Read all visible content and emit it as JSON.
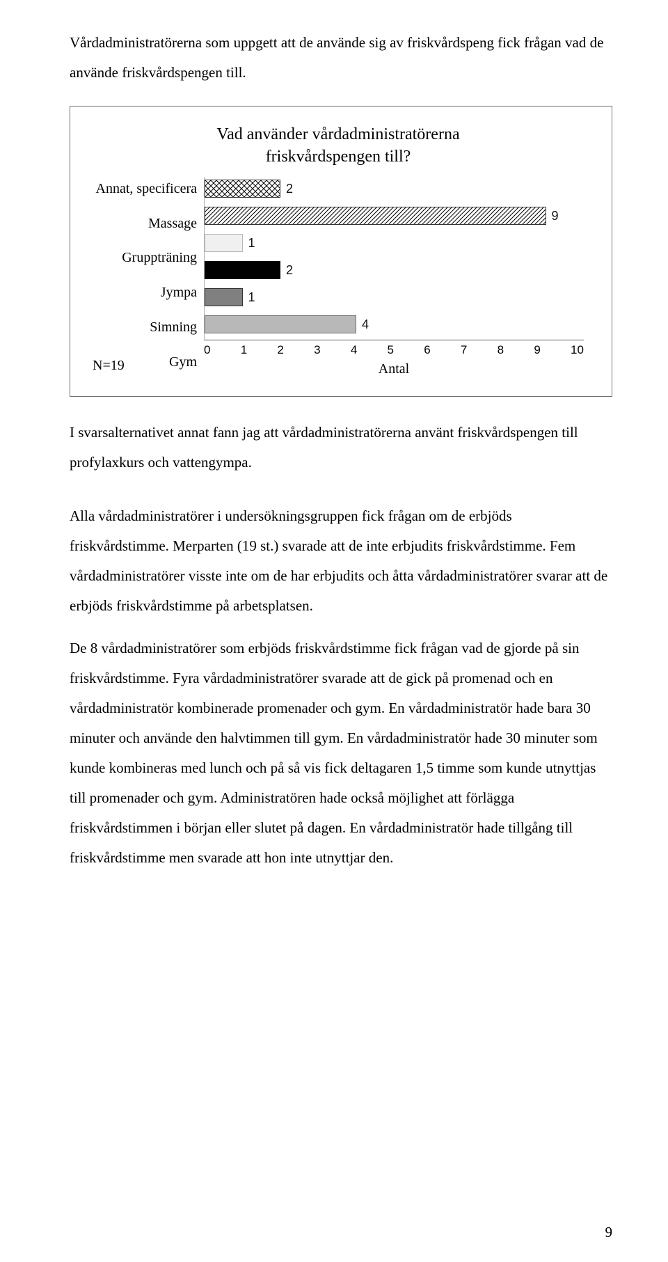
{
  "intro_paragraph": "Vårdadministratörerna som uppgett att de använde sig av friskvårdspeng fick frågan vad de använde friskvårdspengen till.",
  "chart": {
    "type": "bar-horizontal",
    "title_line1": "Vad använder vårdadministratörerna",
    "title_line2": "friskvårdspengen till?",
    "categories": [
      "Annat, specificera",
      "Massage",
      "Gruppträning",
      "Jympa",
      "Simning",
      "Gym"
    ],
    "values": [
      2,
      9,
      1,
      2,
      1,
      4
    ],
    "patterns": [
      "pat-crosshatch",
      "pat-diag",
      "pat-light",
      "pat-solid",
      "pat-horiz",
      "pat-grey"
    ],
    "border_colors": [
      "#333333",
      "#333333",
      "#b8b8b8",
      "#000000",
      "#333333",
      "#6e6e6e"
    ],
    "xmax": 10,
    "xticks": [
      "0",
      "1",
      "2",
      "3",
      "4",
      "5",
      "6",
      "7",
      "8",
      "9",
      "10"
    ],
    "xaxis_label": "Antal",
    "n_note": "N=19",
    "title_fontsize": 24,
    "ylabel_fontsize": 20,
    "bar_label_fontsize": 18,
    "xtick_fontsize": 17,
    "plot_border_color": "#6f6f6f",
    "background_color": "#ffffff",
    "axis_color": "#5c5c5c"
  },
  "para2": "I svarsalternativet annat fann jag att vårdadministratörerna använt friskvårdspengen till profylaxkurs och vattengympa.",
  "para3": "Alla vårdadministratörer i undersökningsgruppen fick frågan om de erbjöds friskvårdstimme. Merparten (19 st.) svarade att de inte erbjudits friskvårdstimme. Fem vårdadministratörer visste inte om de har erbjudits och åtta vårdadministratörer svarar att de erbjöds friskvårdstimme på arbetsplatsen.",
  "para4": "De 8 vårdadministratörer som erbjöds friskvårdstimme fick frågan vad de gjorde på sin friskvårdstimme. Fyra vårdadministratörer svarade att de gick på promenad och en vårdadministratör kombinerade promenader och gym. En vårdadministratör hade bara 30 minuter och använde den halvtimmen till gym. En vårdadministratör hade 30 minuter som kunde kombineras med lunch och på så vis fick deltagaren 1,5 timme som kunde utnyttjas till promenader och gym. Administratören hade också möjlighet att förlägga friskvårdstimmen i början eller slutet på dagen. En vårdadministratör hade tillgång till friskvårdstimme men svarade att hon inte utnyttjar den.",
  "page_number": "9"
}
